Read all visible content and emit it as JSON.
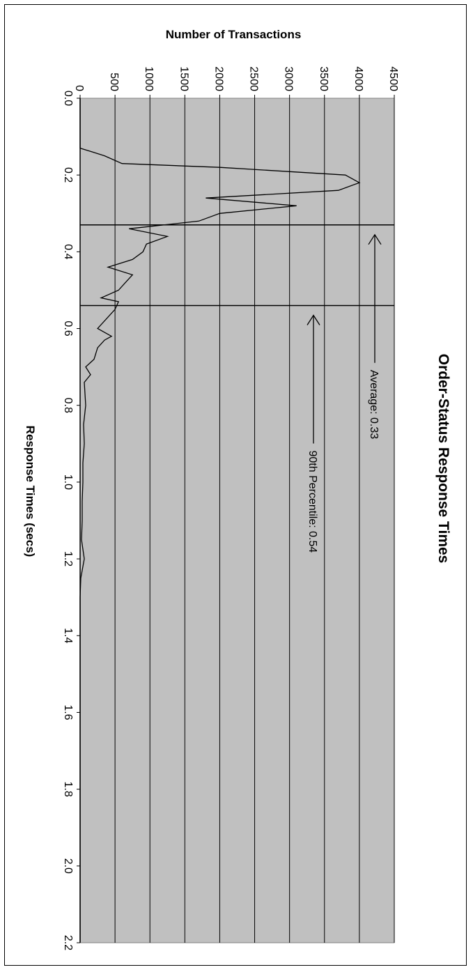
{
  "chart_data": {
    "type": "line",
    "title": "Order-Status Response Times",
    "xlabel": "Response Times (secs)",
    "ylabel": "Number of Transactions",
    "xlim": [
      0,
      2.2
    ],
    "ylim": [
      0,
      4500
    ],
    "x_ticks": [
      "0.0",
      "0.2",
      "0.4",
      "0.6",
      "0.8",
      "1.0",
      "1.2",
      "1.4",
      "1.6",
      "1.8",
      "2.0",
      "2.2"
    ],
    "y_ticks": [
      "0",
      "500",
      "1000",
      "1500",
      "2000",
      "2500",
      "3000",
      "3500",
      "4000",
      "4500"
    ],
    "grid": true,
    "orientation": "rotated-90-clockwise",
    "background_color": "#c0c0c0",
    "line_color": "#000000",
    "series": [
      {
        "x": [
          0.0,
          0.13,
          0.15,
          0.17,
          0.18,
          0.2,
          0.22,
          0.24,
          0.26,
          0.28,
          0.3,
          0.32,
          0.34,
          0.36,
          0.38,
          0.4,
          0.42,
          0.44,
          0.46,
          0.48,
          0.5,
          0.52,
          0.53,
          0.55,
          0.6,
          0.62,
          0.63,
          0.65,
          0.68,
          0.7,
          0.72,
          0.74,
          0.8,
          0.85,
          0.9,
          0.95,
          1.0,
          1.05,
          1.1,
          1.15,
          1.2,
          1.25,
          1.3,
          1.35,
          1.4,
          1.5,
          1.6,
          1.7,
          1.8,
          1.9,
          2.0,
          2.1,
          2.2
        ],
        "y": [
          0,
          0,
          350,
          600,
          2000,
          3800,
          4000,
          3700,
          1800,
          3100,
          2000,
          1700,
          700,
          1250,
          950,
          900,
          750,
          400,
          750,
          650,
          550,
          300,
          550,
          500,
          250,
          450,
          350,
          250,
          200,
          80,
          150,
          60,
          80,
          50,
          60,
          40,
          40,
          30,
          30,
          20,
          60,
          10,
          0,
          0,
          0,
          0,
          0,
          0,
          0,
          0,
          0,
          0,
          0
        ]
      }
    ],
    "reference_lines": [
      {
        "label": "Average: 0.33",
        "x": 0.33
      },
      {
        "label": "90th Percentile: 0.54",
        "x": 0.54
      }
    ]
  }
}
